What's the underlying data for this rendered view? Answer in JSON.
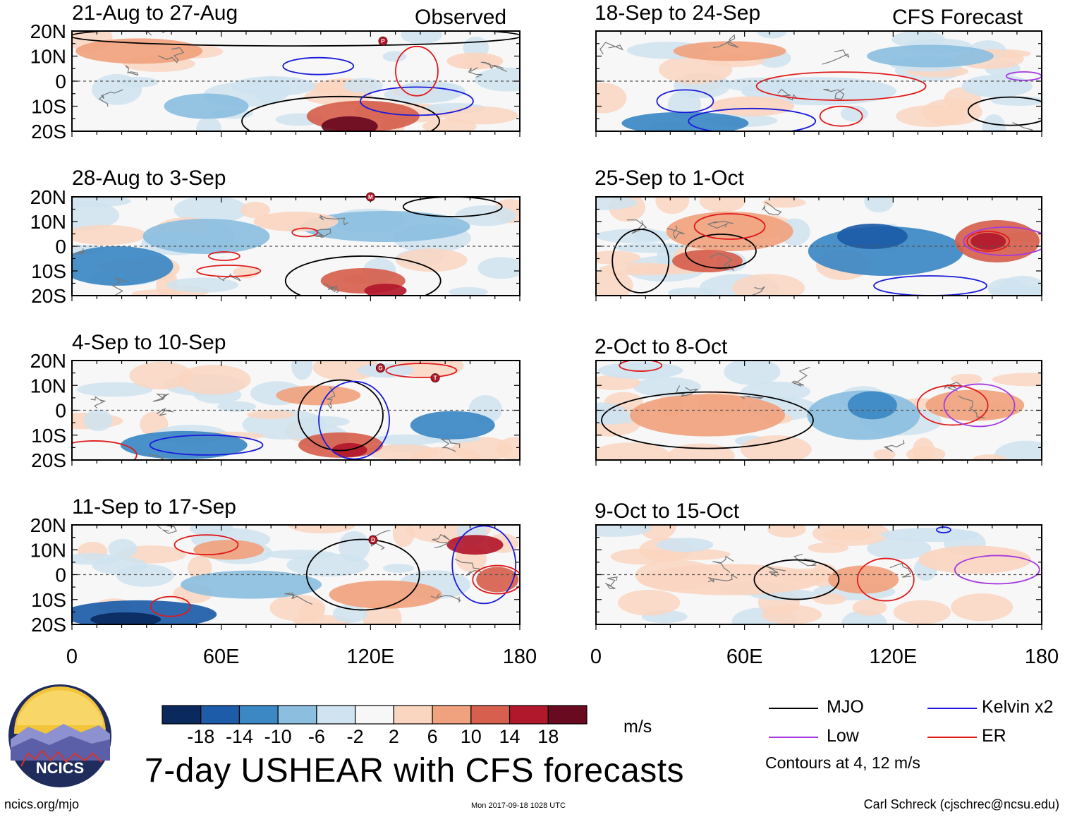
{
  "title": "7-day USHEAR with CFS forecasts",
  "units": "m/s",
  "source_url": "ncics.org/mjo",
  "timestamp": "Mon 2017-09-18 1028 UTC",
  "author": "Carl Schreck (cjschrec@ncsu.edu)",
  "logo_text": "NCICS",
  "contour_note": "Contours at 4, 12 m/s",
  "columns": {
    "left_label": "Observed",
    "right_label": "CFS Forecast"
  },
  "legend": [
    {
      "label": "MJO",
      "color": "#000000"
    },
    {
      "label": "Kelvin x2",
      "color": "#1a1adc"
    },
    {
      "label": "Low",
      "color": "#a43ae0"
    },
    {
      "label": "ER",
      "color": "#e01a1a"
    }
  ],
  "colorbar": {
    "colors": [
      "#0a2a5e",
      "#1c5ca8",
      "#3c88c4",
      "#8cbfdf",
      "#cfe3f0",
      "#f7f7f7",
      "#fad5c0",
      "#f0a27e",
      "#d6604d",
      "#b2182b",
      "#6a0a20"
    ],
    "ticks": [
      "-18",
      "-14",
      "-10",
      "-6",
      "-2",
      "2",
      "6",
      "10",
      "14",
      "18"
    ]
  },
  "chart_data": {
    "type": "heatmap",
    "variable": "7-day USHEAR",
    "units": "m/s",
    "x_ticks": [
      "0",
      "60E",
      "120E",
      "180"
    ],
    "y_ticks": [
      "20N",
      "10N",
      "0",
      "10S",
      "20S"
    ],
    "xlim": [
      0,
      180
    ],
    "ylim": [
      -20,
      20
    ],
    "panels": [
      {
        "period": "21-Aug to 27-Aug",
        "source": "Observed"
      },
      {
        "period": "28-Aug to 3-Sep",
        "source": "Observed"
      },
      {
        "period": "4-Sep to 10-Sep",
        "source": "Observed"
      },
      {
        "period": "11-Sep to 17-Sep",
        "source": "Observed"
      },
      {
        "period": "18-Sep to 24-Sep",
        "source": "CFS Forecast"
      },
      {
        "period": "25-Sep to 1-Oct",
        "source": "CFS Forecast"
      },
      {
        "period": "2-Oct to 8-Oct",
        "source": "CFS Forecast"
      },
      {
        "period": "9-Oct to 15-Oct",
        "source": "CFS Forecast"
      }
    ],
    "storm_markers": [
      {
        "panel": 0,
        "letter": "P",
        "lon": 125,
        "lat": 16
      },
      {
        "panel": 1,
        "letter": "M",
        "lon": 120,
        "lat": 20
      },
      {
        "panel": 2,
        "letter": "G",
        "lon": 124,
        "lat": 17
      },
      {
        "panel": 2,
        "letter": "T",
        "lon": 146,
        "lat": 13
      },
      {
        "panel": 3,
        "letter": "D",
        "lon": 121,
        "lat": 14
      }
    ]
  }
}
